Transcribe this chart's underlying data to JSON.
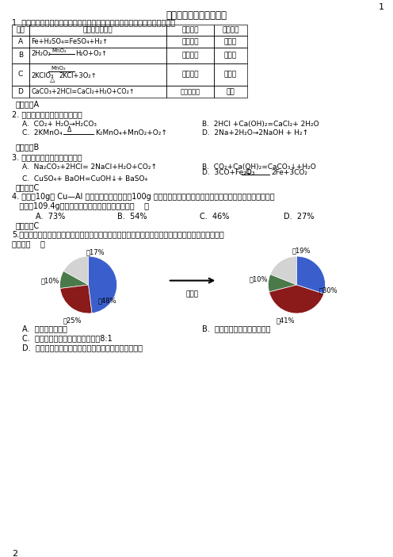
{
  "title": "认识化学反应强化冲刺卷",
  "page_num": "1",
  "page_num2": "2",
  "q1_text": "1. 以下四个化学反应都有气体产生，其反应类型和产生的气体性质均正确的是",
  "table_headers": [
    "选项",
    "化学反应方程式",
    "反应类型",
    "气体性质"
  ],
  "ans1": "【答案】A",
  "ans2": "【答案】B",
  "ans3": "【答案】C",
  "ans4": "【答案】C",
  "q2_text": "2. 下列反应易于复分解反应的是",
  "q3_text": "3. 下列化学方程式书写错误的是",
  "q4_line1": "4. 向盛有10g某 Cu—Al 合金样品的烧杯中加入100g 稀硫酸，恰好完全反应，反应结束后，测得烧杯内物质的总",
  "q4_line2": "   质量为109.4g，则该合金样品中铜的质量分数是（    ）",
  "q4_opts": [
    "A.  73%",
    "B.  54%",
    "C.  46%",
    "D.  27%"
  ],
  "q5_line1": "5.四种物质在一定的条件下充分混合反应，测得反应前后各物质的质量分数如图所示。则有关说法中不",
  "q5_line2": "正确的（    ）",
  "pie_before_values": [
    17,
    10,
    25,
    48
  ],
  "pie_before_colors": [
    "#d3d3d3",
    "#4a7a4a",
    "#8b1a1a",
    "#3a5fcd"
  ],
  "pie_before_labels_text": [
    "甲17%",
    "乙10%",
    "丙25%",
    "丁48%"
  ],
  "pie_after_values": [
    19,
    10,
    41,
    30
  ],
  "pie_after_colors": [
    "#d3d3d3",
    "#4a7a4a",
    "#8b1a1a",
    "#3a5fcd"
  ],
  "pie_after_labels_text": [
    "甲19%",
    "乙10%",
    "丙41%",
    "丁30%"
  ],
  "q5_A": "A.  丁一定是化合物",
  "q5_B": "B.  乙可能是这个反应的催化剂",
  "q5_C": "C.  生成的甲、丙两物质的质量比为8:1",
  "q5_D": "D.  参加反应的丁的质量一定等于生成甲和丙的质量之和",
  "bg_color": "#ffffff",
  "text_color": "#000000",
  "ans_color": "#000000"
}
